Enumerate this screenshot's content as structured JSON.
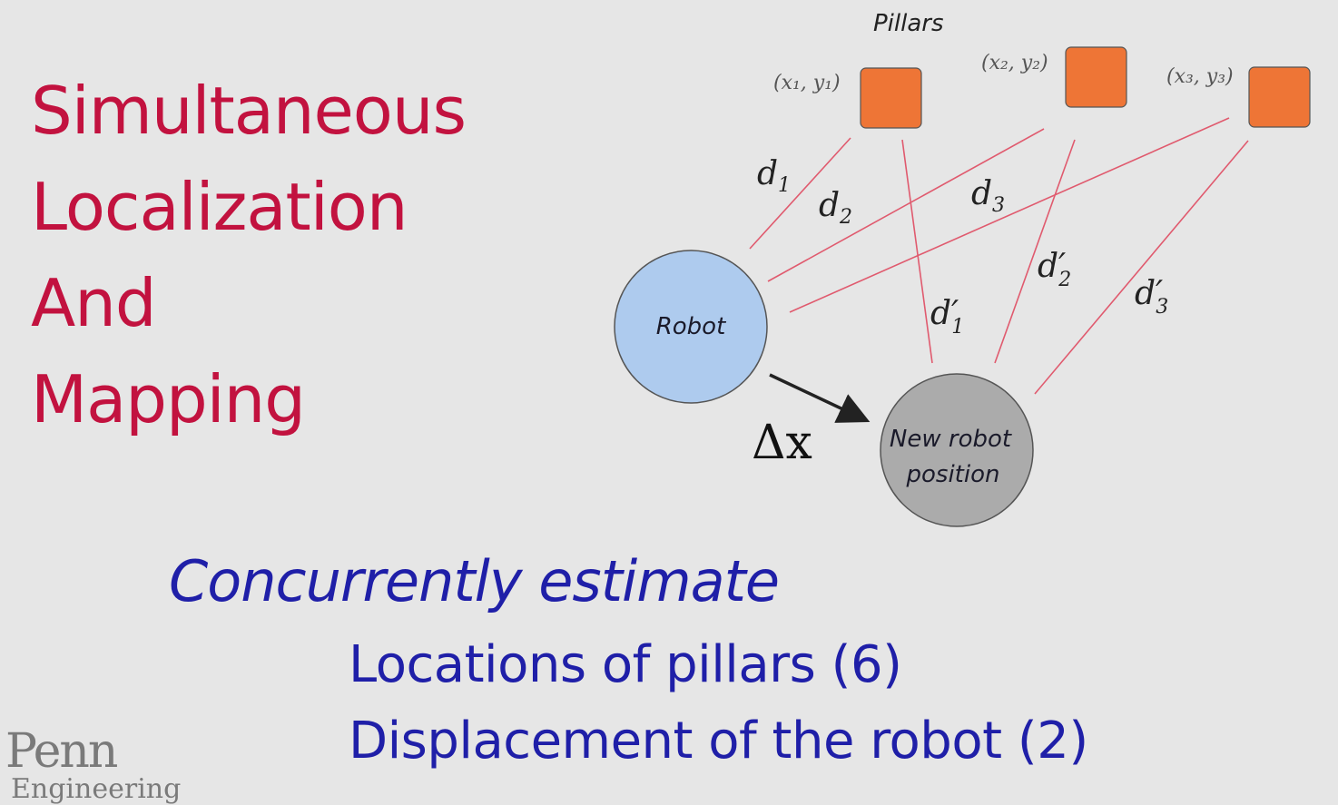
{
  "title": {
    "line1": "Simultaneous",
    "line2": "Localization",
    "line3": "And",
    "line4": "Mapping"
  },
  "diagram": {
    "pillars_heading": "Pillars",
    "pillars": [
      {
        "coord": "(x₁, y₁)",
        "color": "#ee7536"
      },
      {
        "coord": "(x₂, y₂)",
        "color": "#ee7536"
      },
      {
        "coord": "(x₃, y₃)",
        "color": "#ee7536"
      }
    ],
    "robot_label": "Robot",
    "robot_color": "#aecbee",
    "new_robot_label_line1": "New robot",
    "new_robot_label_line2": "position",
    "new_robot_color": "#ababab",
    "distances": {
      "d1": "d",
      "d1_sub": "1",
      "d2": "d",
      "d2_sub": "2",
      "d3": "d",
      "d3_sub": "3",
      "d1p": "d′",
      "d1p_sub": "1",
      "d2p": "d′",
      "d2p_sub": "2",
      "d3p": "d′",
      "d3p_sub": "3"
    },
    "displacement_label": "Δx",
    "line_color": "#e05a6e"
  },
  "subtitle": "Concurrently estimate",
  "bullets": [
    "Locations of pillars (6)",
    "Displacement of the robot (2)"
  ],
  "logo": {
    "name": "Penn",
    "sub": "Engineering"
  }
}
